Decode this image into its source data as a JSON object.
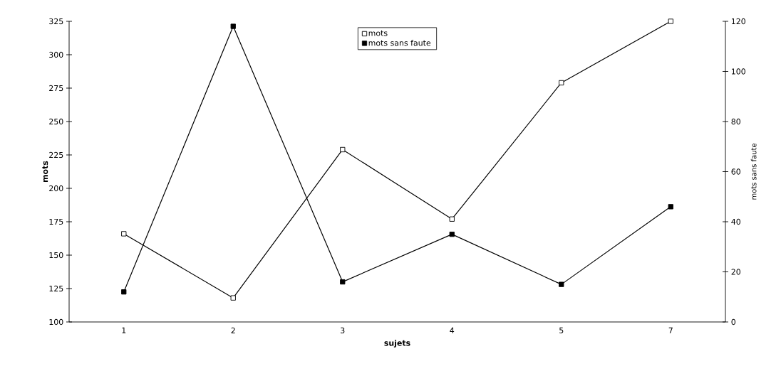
{
  "chart_data": {
    "type": "line",
    "xlabel": "sujets",
    "ylabel": "mots",
    "y2label": "mots sans faute",
    "categories": [
      "1",
      "2",
      "3",
      "4",
      "5",
      "7"
    ],
    "series": [
      {
        "name": "mots",
        "color": "#000000",
        "values": [
          166,
          118,
          229,
          177,
          279,
          325
        ]
      },
      {
        "name": "mots sans faute",
        "color": "#000000",
        "axis": "y2",
        "values": [
          12,
          118,
          16,
          35,
          15,
          46
        ]
      }
    ],
    "ylim": [
      100,
      325
    ],
    "yticks": [
      100,
      125,
      150,
      175,
      200,
      225,
      250,
      275,
      300,
      325
    ],
    "y2lim": [
      0,
      120
    ],
    "y2ticks": [
      0,
      20,
      40,
      60,
      80,
      100,
      120
    ],
    "marker": "square",
    "line_style": "solid",
    "grid": false,
    "legend": "top"
  }
}
